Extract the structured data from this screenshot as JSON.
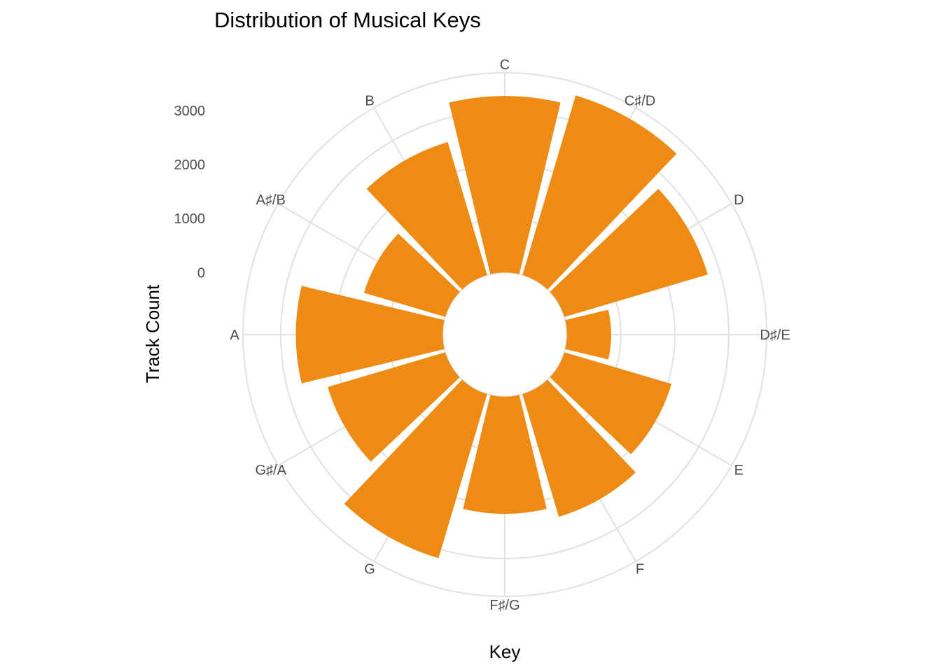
{
  "chart_data": {
    "type": "bar",
    "coord": "polar",
    "title": "Distribution of Musical Keys",
    "xlabel": "Key",
    "ylabel": "Track Count",
    "categories": [
      "C",
      "C♯/D",
      "D",
      "D♯/E",
      "E",
      "F",
      "F♯/G",
      "G",
      "G♯/A",
      "A",
      "A♯/B",
      "B"
    ],
    "values": [
      3270,
      3470,
      2770,
      820,
      2070,
      2370,
      2170,
      3170,
      2270,
      2720,
      1570,
      2570
    ],
    "ylim": [
      -1150,
      3700
    ],
    "y_ticks": [
      0,
      1000,
      2000,
      3000
    ],
    "y_tick_labels": [
      "0",
      "1000",
      "2000",
      "3000"
    ],
    "bar_color": "#ee8b14",
    "grid": true,
    "legend": "none"
  }
}
